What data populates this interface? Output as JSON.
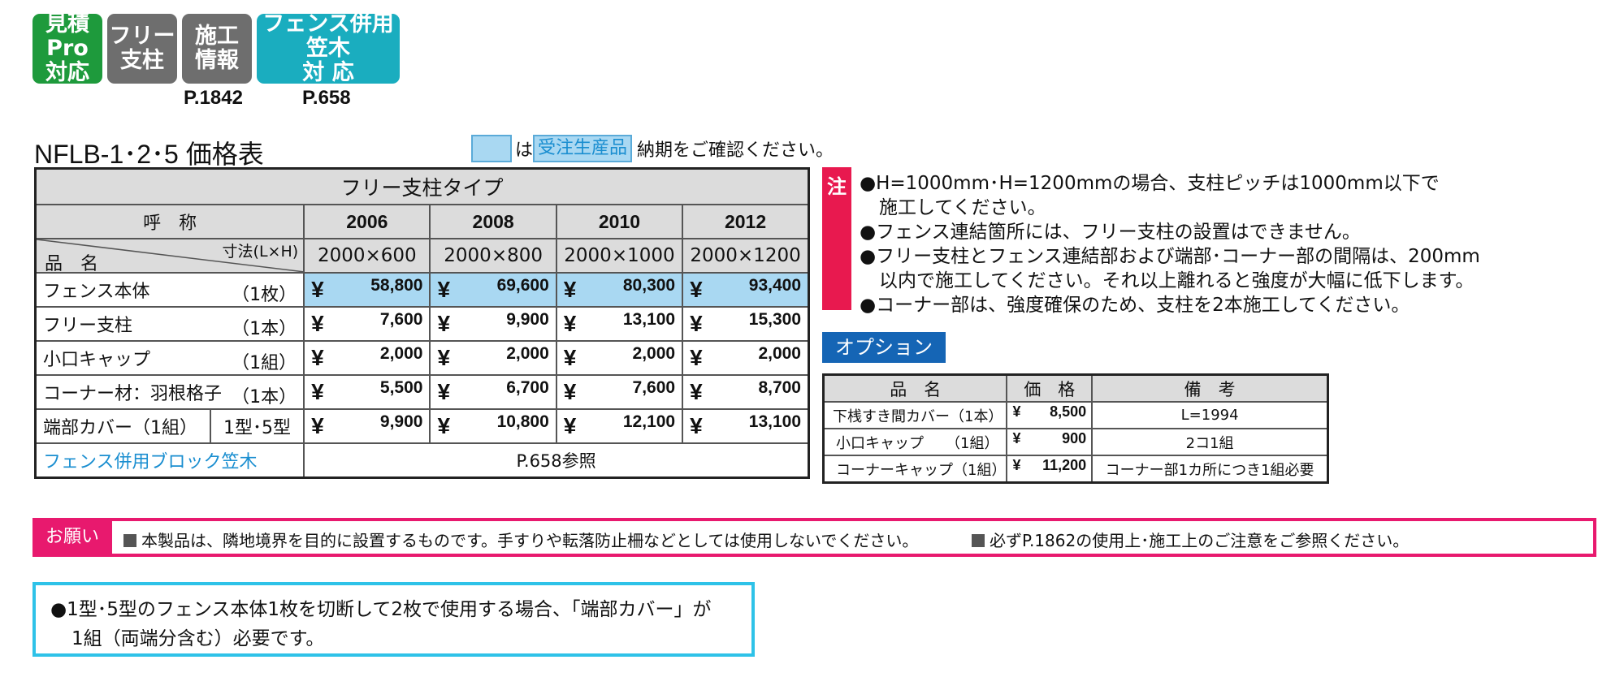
{
  "badges": [
    {
      "line1": "見積Pro",
      "line2": "対応",
      "color": "#1e9a3c"
    },
    {
      "line1": "フリー",
      "line2": "支柱",
      "color": "#6e6e6e"
    },
    {
      "line1": "施工",
      "line2": "情報",
      "color": "#6e6e6e"
    },
    {
      "line1": "フェンス併用笠木",
      "line2": "対 応",
      "color": "#1aadbf"
    }
  ],
  "page_refs": [
    "P.1842",
    "P.658"
  ],
  "title": "NFLB-1･2･5 価格表",
  "legend": {
    "wa": "は",
    "label": "受注生産品",
    "suffix": "納期をご確認ください。"
  },
  "price_table": {
    "type_title": "フリー支柱タイプ",
    "yobi": "呼　称",
    "hinmei": "品　名",
    "size_label": "寸法(L×H)",
    "years": [
      "2006",
      "2008",
      "2010",
      "2012"
    ],
    "sizes": [
      "2000×600",
      "2000×800",
      "2000×1000",
      "2000×1200"
    ],
    "rows": [
      {
        "name": "フェンス本体",
        "qty": "（1枚）",
        "prices": [
          "58,800",
          "69,600",
          "80,300",
          "93,400"
        ]
      },
      {
        "name": "フリー支柱",
        "qty": "（1本）",
        "prices": [
          "7,600",
          "9,900",
          "13,100",
          "15,300"
        ]
      },
      {
        "name": "小口キャップ",
        "qty": "（1組）",
        "prices": [
          "2,000",
          "2,000",
          "2,000",
          "2,000"
        ]
      },
      {
        "name": "コーナー材：羽根格子",
        "qty": "（1本）",
        "prices": [
          "5,500",
          "6,700",
          "7,600",
          "8,700"
        ]
      },
      {
        "name": "端部カバー（1組）",
        "qty": "1型･5型",
        "prices": [
          "9,900",
          "10,800",
          "12,100",
          "13,100"
        ]
      }
    ],
    "yen": "¥",
    "link_row": {
      "name": "フェンス併用ブロック笠木",
      "ref": "P.658参照"
    }
  },
  "notes": {
    "tag": "注",
    "lines": [
      "●H=1000mm･H=1200mmの場合、支柱ピッチは1000mm以下で",
      "施工してください。",
      "●フェンス連結箇所には、フリー支柱の設置はできません。",
      "●フリー支柱とフェンス連結部および端部･コーナー部の間隔は、200mm",
      "以内で施工してください。それ以上離れると強度が大幅に低下します。",
      "●コーナー部は、強度確保のため、支柱を2本施工してください。"
    ]
  },
  "option": {
    "tag": "オプション",
    "headers": [
      "品　名",
      "価　格",
      "備　考"
    ],
    "rows": [
      {
        "name": "下桟すき間カバー（1本）",
        "price": "8,500",
        "remark": "L=1994"
      },
      {
        "name": "小口キャップ　　（1組）",
        "price": "900",
        "remark": "2コ1組"
      },
      {
        "name": "コーナーキャップ（1組）",
        "price": "11,200",
        "remark": "コーナー部1カ所につき1組必要"
      }
    ]
  },
  "request": {
    "tag": "お願い",
    "item1": "本製品は、隣地境界を目的に設置するものです。手すりや転落防止柵などとしては使用しないでください。",
    "item2": "必ずP.1862の使用上･施工上のご注意をご参照ください。"
  },
  "bottom_note": {
    "line1": "●1型･5型のフェンス本体1枚を切断して2枚で使用する場合、「端部カバー」が",
    "line2": "1組（両端分含む）必要です。"
  },
  "colors": {
    "highlight": "#a9d8f2",
    "accent_pink": "#e8196e",
    "accent_blue": "#1565b5",
    "cyan_border": "#2ec2e8"
  }
}
